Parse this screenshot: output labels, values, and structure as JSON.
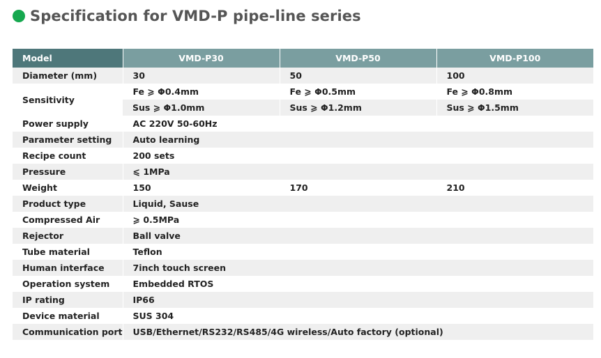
{
  "title": "Specification for VMD-P pipe-line series",
  "accent_color": "#16a84f",
  "header": {
    "model": "Model",
    "columns": [
      "VMD-P30",
      "VMD-P50",
      "VMD-P100"
    ]
  },
  "rows": {
    "diameter": {
      "label": "Diameter (mm)",
      "values": [
        "30",
        "50",
        "100"
      ]
    },
    "sensitivity": {
      "label": "Sensitivity",
      "fe": [
        "Fe ⩾ Φ0.4mm",
        "Fe ⩾ Φ0.5mm",
        "Fe ⩾ Φ0.8mm"
      ],
      "sus": [
        "Sus ⩾ Φ1.0mm",
        "Sus ⩾ Φ1.2mm",
        "Sus ⩾ Φ1.5mm"
      ]
    },
    "power": {
      "label": "Power supply",
      "value": "AC 220V 50-60Hz"
    },
    "param": {
      "label": "Parameter setting",
      "value": "Auto learning"
    },
    "recipe": {
      "label": "Recipe count",
      "value": "200 sets"
    },
    "pressure": {
      "label": "Pressure",
      "value": "⩽ 1MPa"
    },
    "weight": {
      "label": "Weight",
      "values": [
        "150",
        "170",
        "210"
      ]
    },
    "product": {
      "label": "Product type",
      "value": "Liquid, Sause"
    },
    "air": {
      "label": "Compressed Air",
      "value": "⩾ 0.5MPa"
    },
    "rejector": {
      "label": "Rejector",
      "value": "Ball valve"
    },
    "tube": {
      "label": "Tube material",
      "value": "Teflon"
    },
    "hmi": {
      "label": "Human interface",
      "value": "7inch touch screen"
    },
    "os": {
      "label": "Operation system",
      "value": "Embedded RTOS"
    },
    "ip": {
      "label": "IP rating",
      "value": "IP66"
    },
    "device": {
      "label": "Device material",
      "value": "SUS 304"
    },
    "comm": {
      "label": "Communication port",
      "value": "USB/Ethernet/RS232/RS485/4G wireless/Auto factory (optional)"
    }
  }
}
